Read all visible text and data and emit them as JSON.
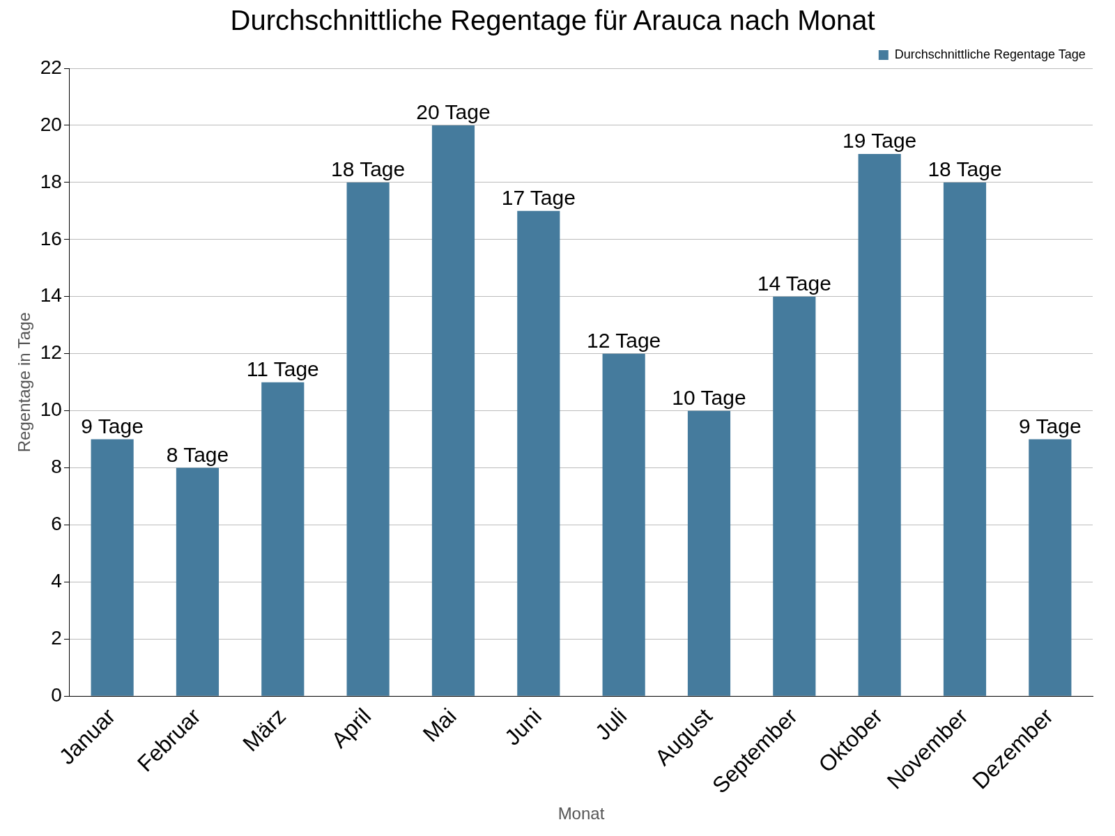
{
  "chart_data": {
    "type": "bar",
    "title": "Durchschnittliche Regentage für Arauca nach Monat",
    "xlabel": "Monat",
    "ylabel": "Regentage in Tage",
    "categories": [
      "Januar",
      "Februar",
      "März",
      "April",
      "Mai",
      "Juni",
      "Juli",
      "August",
      "September",
      "Oktober",
      "November",
      "Dezember"
    ],
    "series": [
      {
        "name": "Durchschnittliche Regentage Tage",
        "color": "#457b9d",
        "values": [
          9,
          8,
          11,
          18,
          20,
          17,
          12,
          10,
          14,
          19,
          18,
          9
        ],
        "value_labels": [
          "9 Tage",
          "8 Tage",
          "11 Tage",
          "18 Tage",
          "20 Tage",
          "17 Tage",
          "12 Tage",
          "10 Tage",
          "14 Tage",
          "19 Tage",
          "18 Tage",
          "9 Tage"
        ]
      }
    ],
    "ylim": [
      0,
      22
    ],
    "yticks": [
      0,
      2,
      4,
      6,
      8,
      10,
      12,
      14,
      16,
      18,
      20,
      22
    ],
    "grid": "y",
    "legend": "top right"
  }
}
